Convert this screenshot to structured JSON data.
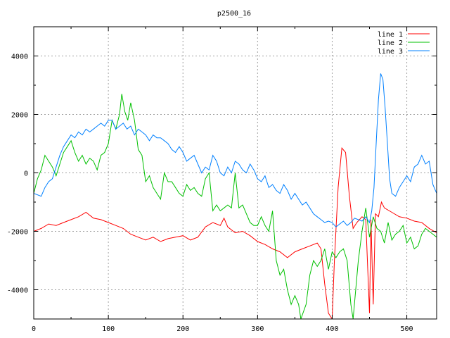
{
  "chart_data": {
    "type": "line",
    "title": "p2500_16",
    "xlabel": "",
    "ylabel": "",
    "xlim": [
      0,
      540
    ],
    "ylim": [
      -5000,
      5000
    ],
    "xticks": [
      0,
      100,
      200,
      300,
      400,
      500
    ],
    "yticks": [
      -4000,
      -2000,
      0,
      2000,
      4000
    ],
    "grid": true,
    "legend_position": "top-right",
    "series": [
      {
        "name": "line 1",
        "color": "#ff0000",
        "points": [
          [
            0,
            -2000
          ],
          [
            10,
            -1900
          ],
          [
            20,
            -1750
          ],
          [
            30,
            -1800
          ],
          [
            40,
            -1700
          ],
          [
            50,
            -1600
          ],
          [
            60,
            -1500
          ],
          [
            70,
            -1350
          ],
          [
            80,
            -1550
          ],
          [
            90,
            -1600
          ],
          [
            100,
            -1700
          ],
          [
            110,
            -1800
          ],
          [
            120,
            -1900
          ],
          [
            130,
            -2100
          ],
          [
            140,
            -2200
          ],
          [
            150,
            -2300
          ],
          [
            160,
            -2200
          ],
          [
            170,
            -2350
          ],
          [
            180,
            -2250
          ],
          [
            190,
            -2200
          ],
          [
            200,
            -2150
          ],
          [
            210,
            -2300
          ],
          [
            220,
            -2200
          ],
          [
            230,
            -1850
          ],
          [
            240,
            -1700
          ],
          [
            250,
            -1800
          ],
          [
            255,
            -1550
          ],
          [
            260,
            -1850
          ],
          [
            270,
            -2050
          ],
          [
            280,
            -2000
          ],
          [
            290,
            -2150
          ],
          [
            300,
            -2350
          ],
          [
            310,
            -2450
          ],
          [
            320,
            -2600
          ],
          [
            330,
            -2700
          ],
          [
            340,
            -2900
          ],
          [
            350,
            -2700
          ],
          [
            360,
            -2600
          ],
          [
            370,
            -2500
          ],
          [
            380,
            -2400
          ],
          [
            385,
            -2600
          ],
          [
            390,
            -3800
          ],
          [
            395,
            -4800
          ],
          [
            400,
            -5000
          ],
          [
            403,
            -3000
          ],
          [
            408,
            -500
          ],
          [
            413,
            850
          ],
          [
            418,
            700
          ],
          [
            423,
            -800
          ],
          [
            428,
            -1900
          ],
          [
            433,
            -1700
          ],
          [
            440,
            -1500
          ],
          [
            445,
            -1600
          ],
          [
            450,
            -4800
          ],
          [
            452,
            -1600
          ],
          [
            455,
            -4500
          ],
          [
            458,
            -1400
          ],
          [
            462,
            -1500
          ],
          [
            466,
            -1000
          ],
          [
            470,
            -1200
          ],
          [
            480,
            -1350
          ],
          [
            490,
            -1500
          ],
          [
            500,
            -1550
          ],
          [
            510,
            -1650
          ],
          [
            520,
            -1700
          ],
          [
            530,
            -1900
          ],
          [
            540,
            -2050
          ]
        ]
      },
      {
        "name": "line 2",
        "color": "#00c000",
        "points": [
          [
            0,
            -700
          ],
          [
            5,
            -200
          ],
          [
            10,
            100
          ],
          [
            15,
            600
          ],
          [
            20,
            400
          ],
          [
            25,
            200
          ],
          [
            30,
            -100
          ],
          [
            35,
            300
          ],
          [
            40,
            700
          ],
          [
            45,
            900
          ],
          [
            50,
            1100
          ],
          [
            55,
            700
          ],
          [
            60,
            400
          ],
          [
            65,
            600
          ],
          [
            70,
            300
          ],
          [
            75,
            500
          ],
          [
            80,
            400
          ],
          [
            85,
            100
          ],
          [
            90,
            600
          ],
          [
            95,
            700
          ],
          [
            100,
            1000
          ],
          [
            105,
            1800
          ],
          [
            110,
            1500
          ],
          [
            115,
            2000
          ],
          [
            118,
            2700
          ],
          [
            122,
            2100
          ],
          [
            126,
            1800
          ],
          [
            130,
            2400
          ],
          [
            135,
            1800
          ],
          [
            140,
            800
          ],
          [
            145,
            600
          ],
          [
            150,
            -300
          ],
          [
            155,
            -100
          ],
          [
            160,
            -500
          ],
          [
            165,
            -700
          ],
          [
            170,
            -900
          ],
          [
            175,
            0
          ],
          [
            180,
            -300
          ],
          [
            185,
            -300
          ],
          [
            190,
            -500
          ],
          [
            195,
            -700
          ],
          [
            200,
            -800
          ],
          [
            205,
            -400
          ],
          [
            210,
            -600
          ],
          [
            215,
            -500
          ],
          [
            220,
            -700
          ],
          [
            225,
            -800
          ],
          [
            230,
            -200
          ],
          [
            235,
            0
          ],
          [
            240,
            -1300
          ],
          [
            245,
            -1100
          ],
          [
            250,
            -1300
          ],
          [
            255,
            -1200
          ],
          [
            260,
            -1100
          ],
          [
            265,
            -1200
          ],
          [
            270,
            0
          ],
          [
            275,
            -1200
          ],
          [
            280,
            -1100
          ],
          [
            285,
            -1400
          ],
          [
            290,
            -1700
          ],
          [
            295,
            -1800
          ],
          [
            300,
            -1800
          ],
          [
            305,
            -1500
          ],
          [
            310,
            -1800
          ],
          [
            315,
            -2000
          ],
          [
            320,
            -1300
          ],
          [
            325,
            -3000
          ],
          [
            330,
            -3500
          ],
          [
            335,
            -3300
          ],
          [
            340,
            -4000
          ],
          [
            345,
            -4500
          ],
          [
            350,
            -4200
          ],
          [
            355,
            -4500
          ],
          [
            358,
            -5000
          ],
          [
            365,
            -4500
          ],
          [
            370,
            -3500
          ],
          [
            375,
            -3000
          ],
          [
            380,
            -3200
          ],
          [
            385,
            -3000
          ],
          [
            390,
            -2600
          ],
          [
            395,
            -3300
          ],
          [
            400,
            -2700
          ],
          [
            405,
            -2900
          ],
          [
            410,
            -2700
          ],
          [
            415,
            -2600
          ],
          [
            420,
            -3000
          ],
          [
            425,
            -4500
          ],
          [
            428,
            -5000
          ],
          [
            435,
            -3000
          ],
          [
            440,
            -2000
          ],
          [
            445,
            -1200
          ],
          [
            450,
            -2200
          ],
          [
            455,
            -1500
          ],
          [
            460,
            -1900
          ],
          [
            465,
            -2000
          ],
          [
            470,
            -2400
          ],
          [
            475,
            -1700
          ],
          [
            480,
            -2300
          ],
          [
            485,
            -2100
          ],
          [
            490,
            -2000
          ],
          [
            495,
            -1800
          ],
          [
            500,
            -2400
          ],
          [
            505,
            -2200
          ],
          [
            510,
            -2600
          ],
          [
            515,
            -2500
          ],
          [
            520,
            -2100
          ],
          [
            525,
            -1900
          ],
          [
            530,
            -2000
          ],
          [
            535,
            -2100
          ],
          [
            540,
            -2200
          ]
        ]
      },
      {
        "name": "line 3",
        "color": "#0080ff",
        "points": [
          [
            0,
            -700
          ],
          [
            10,
            -800
          ],
          [
            15,
            -500
          ],
          [
            20,
            -300
          ],
          [
            25,
            -200
          ],
          [
            30,
            200
          ],
          [
            35,
            600
          ],
          [
            40,
            900
          ],
          [
            45,
            1100
          ],
          [
            50,
            1300
          ],
          [
            55,
            1200
          ],
          [
            60,
            1400
          ],
          [
            65,
            1300
          ],
          [
            70,
            1500
          ],
          [
            75,
            1400
          ],
          [
            80,
            1500
          ],
          [
            85,
            1600
          ],
          [
            90,
            1700
          ],
          [
            95,
            1600
          ],
          [
            100,
            1800
          ],
          [
            105,
            1800
          ],
          [
            110,
            1500
          ],
          [
            115,
            1600
          ],
          [
            120,
            1700
          ],
          [
            125,
            1500
          ],
          [
            130,
            1600
          ],
          [
            135,
            1300
          ],
          [
            140,
            1500
          ],
          [
            145,
            1400
          ],
          [
            150,
            1300
          ],
          [
            155,
            1100
          ],
          [
            160,
            1300
          ],
          [
            165,
            1200
          ],
          [
            170,
            1200
          ],
          [
            175,
            1100
          ],
          [
            180,
            1000
          ],
          [
            185,
            800
          ],
          [
            190,
            700
          ],
          [
            195,
            900
          ],
          [
            200,
            700
          ],
          [
            205,
            400
          ],
          [
            210,
            500
          ],
          [
            215,
            600
          ],
          [
            220,
            300
          ],
          [
            225,
            0
          ],
          [
            230,
            200
          ],
          [
            235,
            100
          ],
          [
            240,
            600
          ],
          [
            245,
            400
          ],
          [
            250,
            0
          ],
          [
            255,
            -100
          ],
          [
            260,
            200
          ],
          [
            265,
            0
          ],
          [
            270,
            400
          ],
          [
            275,
            300
          ],
          [
            280,
            100
          ],
          [
            285,
            0
          ],
          [
            290,
            300
          ],
          [
            295,
            100
          ],
          [
            300,
            -200
          ],
          [
            305,
            -300
          ],
          [
            310,
            -100
          ],
          [
            315,
            -500
          ],
          [
            320,
            -400
          ],
          [
            325,
            -600
          ],
          [
            330,
            -700
          ],
          [
            335,
            -400
          ],
          [
            340,
            -600
          ],
          [
            345,
            -900
          ],
          [
            350,
            -700
          ],
          [
            355,
            -900
          ],
          [
            360,
            -1100
          ],
          [
            365,
            -1000
          ],
          [
            370,
            -1200
          ],
          [
            375,
            -1400
          ],
          [
            380,
            -1500
          ],
          [
            385,
            -1600
          ],
          [
            390,
            -1700
          ],
          [
            395,
            -1650
          ],
          [
            400,
            -1700
          ],
          [
            405,
            -1850
          ],
          [
            410,
            -1750
          ],
          [
            415,
            -1650
          ],
          [
            420,
            -1800
          ],
          [
            425,
            -1700
          ],
          [
            430,
            -1550
          ],
          [
            435,
            -1600
          ],
          [
            440,
            -1650
          ],
          [
            445,
            -1500
          ],
          [
            450,
            -1700
          ],
          [
            453,
            -1300
          ],
          [
            456,
            -500
          ],
          [
            459,
            1000
          ],
          [
            462,
            2500
          ],
          [
            465,
            3400
          ],
          [
            468,
            3200
          ],
          [
            471,
            2200
          ],
          [
            474,
            1000
          ],
          [
            477,
            -200
          ],
          [
            480,
            -700
          ],
          [
            485,
            -800
          ],
          [
            490,
            -500
          ],
          [
            495,
            -300
          ],
          [
            500,
            -100
          ],
          [
            505,
            -300
          ],
          [
            510,
            200
          ],
          [
            515,
            300
          ],
          [
            520,
            600
          ],
          [
            525,
            300
          ],
          [
            530,
            400
          ],
          [
            535,
            -400
          ],
          [
            540,
            -700
          ]
        ]
      }
    ]
  }
}
